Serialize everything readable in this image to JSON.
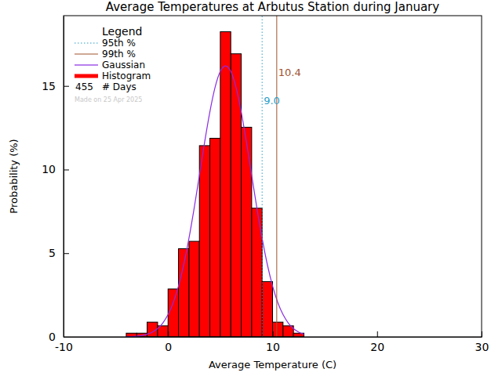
{
  "chart_data": {
    "type": "histogram",
    "title": "Average Temperatures at Arbutus Station during January",
    "x_label": "Average Temperature (C)",
    "y_label": "Probability (%)",
    "legend_title": "Legend",
    "legend": "top-left",
    "note": "Made on 25 Apr 2025",
    "name": "Histogram",
    "color": "#ff0000",
    "bins": [
      -4,
      -3,
      -2,
      -1,
      0,
      1,
      2,
      3,
      4,
      5,
      6,
      7,
      8,
      9,
      10,
      11,
      12,
      13
    ],
    "values": [
      0.22,
      0.22,
      0.88,
      0.66,
      2.86,
      5.27,
      5.71,
      11.43,
      11.87,
      18.24,
      16.92,
      12.53,
      7.69,
      3.3,
      0.88,
      0.66,
      0.22
    ],
    "gaussian": {
      "name": "Gaussian",
      "color": "#8a2be2",
      "x": [
        -4,
        -3.5,
        -3,
        -2.5,
        -2,
        -1.5,
        -1,
        -0.5,
        0,
        0.5,
        1,
        1.5,
        2,
        2.5,
        3,
        3.5,
        4,
        4.5,
        5,
        5.5,
        6,
        6.5,
        7,
        7.5,
        8,
        8.5,
        9,
        9.5,
        10,
        10.5,
        11,
        11.5,
        12,
        12.5,
        13
      ],
      "values": [
        0.01,
        0.02,
        0.04,
        0.08,
        0.16,
        0.28,
        0.49,
        0.83,
        1.33,
        2.05,
        3.04,
        4.32,
        5.89,
        7.7,
        9.66,
        11.64,
        13.45,
        14.92,
        15.87,
        16.2,
        15.87,
        14.92,
        13.45,
        11.64,
        9.66,
        7.7,
        5.89,
        4.32,
        3.04,
        2.05,
        1.33,
        0.83,
        0.49,
        0.28,
        0.16
      ]
    },
    "percentiles": [
      {
        "name": "95th %",
        "value": 9.0,
        "label": "9.0",
        "color": "#2a9fc8",
        "line_style": "dotted"
      },
      {
        "name": "99th %",
        "value": 10.4,
        "label": "10.4",
        "color": "#a0522d",
        "line_style": "solid"
      }
    ],
    "days": {
      "label": "# Days",
      "value": 455
    },
    "xlim": [
      -10,
      30
    ],
    "xticks": [
      -10,
      0,
      10,
      20,
      30
    ],
    "ylim": [
      0,
      19.2
    ],
    "yticks": [
      0,
      5,
      10,
      15
    ]
  }
}
